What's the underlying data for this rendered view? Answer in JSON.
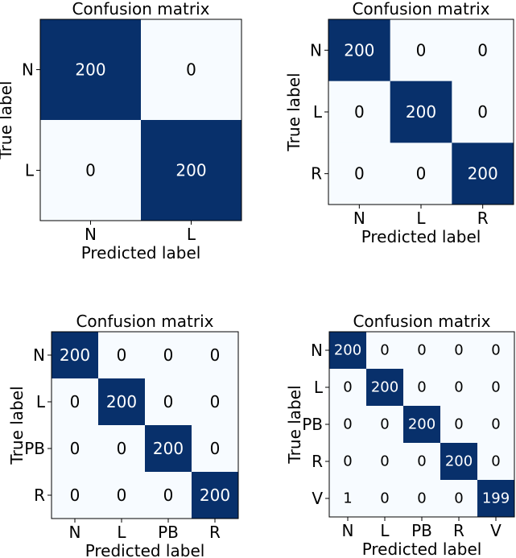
{
  "colors": {
    "dark": "#08306b",
    "light": "#f7fbff",
    "text_on_dark": "#ffffff",
    "text_on_light": "#000000"
  },
  "chart_data": [
    {
      "type": "heatmap",
      "title": "Confusion matrix",
      "xlabel": "Predicted label",
      "ylabel": "True label",
      "labels": [
        "N",
        "L"
      ],
      "matrix": [
        [
          200,
          0
        ],
        [
          0,
          200
        ]
      ]
    },
    {
      "type": "heatmap",
      "title": "Confusion matrix",
      "xlabel": "Predicted label",
      "ylabel": "True label",
      "labels": [
        "N",
        "L",
        "R"
      ],
      "matrix": [
        [
          200,
          0,
          0
        ],
        [
          0,
          200,
          0
        ],
        [
          0,
          0,
          200
        ]
      ]
    },
    {
      "type": "heatmap",
      "title": "Confusion matrix",
      "xlabel": "Predicted label",
      "ylabel": "True label",
      "labels": [
        "N",
        "L",
        "PB",
        "R"
      ],
      "matrix": [
        [
          200,
          0,
          0,
          0
        ],
        [
          0,
          200,
          0,
          0
        ],
        [
          0,
          0,
          200,
          0
        ],
        [
          0,
          0,
          0,
          200
        ]
      ]
    },
    {
      "type": "heatmap",
      "title": "Confusion matrix",
      "xlabel": "Predicted label",
      "ylabel": "True label",
      "labels": [
        "N",
        "L",
        "PB",
        "R",
        "V"
      ],
      "matrix": [
        [
          200,
          0,
          0,
          0,
          0
        ],
        [
          0,
          200,
          0,
          0,
          0
        ],
        [
          0,
          0,
          200,
          0,
          0
        ],
        [
          0,
          0,
          0,
          200,
          0
        ],
        [
          1,
          0,
          0,
          0,
          199
        ]
      ]
    }
  ]
}
